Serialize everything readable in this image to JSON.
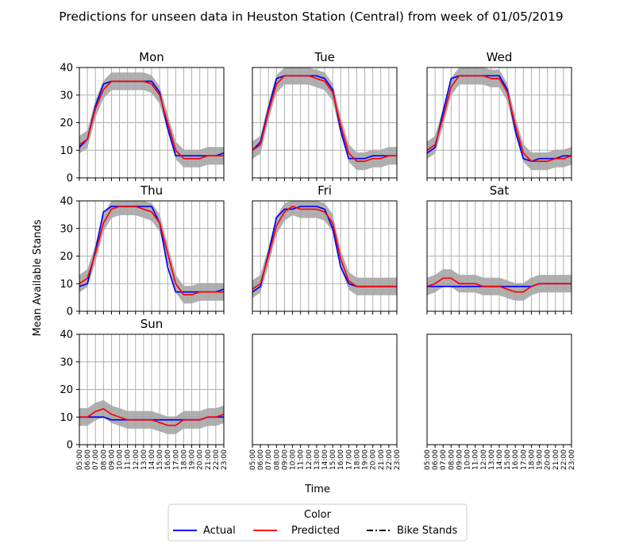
{
  "figure": {
    "title": "Predictions for unseen data in Heuston Station (Central) from week of 01/05/2019",
    "ylabel": "Mean Available Stands",
    "xlabel": "Time"
  },
  "legend": {
    "title": "Color",
    "entries": [
      {
        "label": "Actual",
        "color": "#0000ff",
        "style": "solid"
      },
      {
        "label": "Predicted",
        "color": "#ff0000",
        "style": "solid"
      },
      {
        "label": "Bike Stands",
        "color": "#000000",
        "style": "dashdot"
      }
    ]
  },
  "colors": {
    "actual": "#0000ff",
    "predicted": "#ff0000",
    "band": "#a6a6a6",
    "grid": "#b0b0b0"
  },
  "chart_data": {
    "type": "line",
    "x": [
      "05:00",
      "06:00",
      "07:00",
      "08:00",
      "09:00",
      "10:00",
      "11:00",
      "12:00",
      "13:00",
      "14:00",
      "15:00",
      "16:00",
      "17:00",
      "18:00",
      "19:00",
      "20:00",
      "21:00",
      "22:00",
      "23:00"
    ],
    "ylim": [
      0,
      40
    ],
    "yticks": [
      0,
      10,
      20,
      30,
      40
    ],
    "grid": true,
    "legend_position": "bottom-center",
    "panels": [
      {
        "day": "Mon",
        "actual": [
          11,
          14,
          26,
          34,
          35,
          35,
          35,
          35,
          35,
          35,
          31,
          18,
          8,
          8,
          8,
          8,
          8,
          8,
          9
        ],
        "predicted": [
          12,
          14,
          25,
          32,
          35,
          35,
          35,
          35,
          35,
          34,
          30,
          20,
          10,
          7,
          7,
          7,
          8,
          8,
          8
        ]
      },
      {
        "day": "Tue",
        "actual": [
          10,
          13,
          25,
          36,
          37,
          37,
          37,
          37,
          37,
          36,
          32,
          17,
          7,
          7,
          7,
          8,
          8,
          8,
          8
        ],
        "predicted": [
          10,
          12,
          24,
          34,
          37,
          37,
          37,
          37,
          36,
          35,
          31,
          19,
          9,
          6,
          6,
          7,
          7,
          8,
          8
        ]
      },
      {
        "day": "Wed",
        "actual": [
          9,
          11,
          24,
          36,
          37,
          37,
          37,
          37,
          37,
          37,
          32,
          17,
          7,
          6,
          7,
          7,
          7,
          8,
          8
        ],
        "predicted": [
          10,
          12,
          22,
          33,
          37,
          37,
          37,
          37,
          36,
          36,
          31,
          19,
          9,
          6,
          6,
          6,
          7,
          7,
          8
        ]
      },
      {
        "day": "Thu",
        "actual": [
          9,
          10,
          22,
          36,
          38,
          38,
          38,
          38,
          38,
          38,
          32,
          16,
          7,
          7,
          7,
          7,
          7,
          7,
          8
        ],
        "predicted": [
          10,
          12,
          21,
          32,
          37,
          38,
          38,
          38,
          37,
          36,
          32,
          21,
          10,
          6,
          6,
          7,
          7,
          7,
          7
        ]
      },
      {
        "day": "Fri",
        "actual": [
          7,
          9,
          21,
          34,
          37,
          37,
          38,
          38,
          38,
          37,
          30,
          16,
          10,
          9,
          9,
          9,
          9,
          9,
          9
        ],
        "predicted": [
          8,
          10,
          20,
          31,
          36,
          38,
          37,
          37,
          37,
          36,
          32,
          19,
          11,
          9,
          9,
          9,
          9,
          9,
          9
        ]
      },
      {
        "day": "Sat",
        "actual": [
          9,
          9,
          9,
          9,
          9,
          9,
          9,
          9,
          9,
          9,
          9,
          9,
          9,
          9,
          10,
          10,
          10,
          10,
          10
        ],
        "predicted": [
          9,
          10,
          12,
          12,
          10,
          10,
          10,
          9,
          9,
          9,
          8,
          7,
          7,
          9,
          10,
          10,
          10,
          10,
          10
        ]
      },
      {
        "day": "Sun",
        "actual": [
          10,
          10,
          10,
          10,
          9,
          9,
          9,
          9,
          9,
          9,
          9,
          9,
          9,
          9,
          9,
          9,
          10,
          10,
          10
        ],
        "predicted": [
          10,
          10,
          12,
          13,
          11,
          10,
          9,
          9,
          9,
          9,
          8,
          7,
          7,
          9,
          9,
          9,
          10,
          10,
          11
        ]
      }
    ],
    "band_half_width": 3.2
  }
}
